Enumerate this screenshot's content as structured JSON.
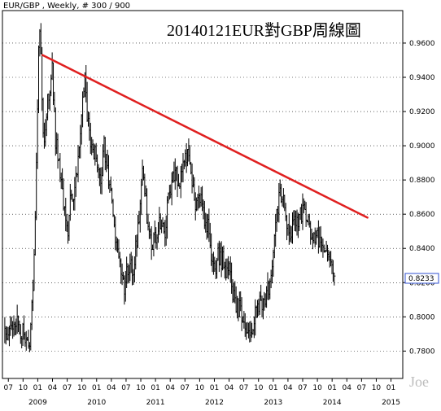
{
  "chart_data": {
    "type": "line",
    "header": "EUR/GBP , Weekly, # 300 / 900",
    "title": "20140121EUR對GBP周線圖",
    "watermark": "Joe",
    "last_price": "0.8233",
    "ylim": [
      0.764,
      0.979
    ],
    "y_ticks": [
      {
        "value": 0.96,
        "label": "0.9600"
      },
      {
        "value": 0.94,
        "label": "0.9400"
      },
      {
        "value": 0.92,
        "label": "0.9200"
      },
      {
        "value": 0.9,
        "label": "0.9000"
      },
      {
        "value": 0.88,
        "label": "0.8800"
      },
      {
        "value": 0.86,
        "label": "0.8600"
      },
      {
        "value": 0.84,
        "label": "0.8400"
      },
      {
        "value": 0.82,
        "label": "0.8200"
      },
      {
        "value": 0.8,
        "label": "0.8000"
      },
      {
        "value": 0.78,
        "label": "0.7800"
      }
    ],
    "xlim": [
      2008.4,
      2015.2
    ],
    "x_month_ticks": [
      {
        "value": 2008.5,
        "label": "07"
      },
      {
        "value": 2008.75,
        "label": "10"
      },
      {
        "value": 2009.0,
        "label": "01"
      },
      {
        "value": 2009.25,
        "label": "04"
      },
      {
        "value": 2009.5,
        "label": "07"
      },
      {
        "value": 2009.75,
        "label": "10"
      },
      {
        "value": 2010.0,
        "label": "01"
      },
      {
        "value": 2010.25,
        "label": "04"
      },
      {
        "value": 2010.5,
        "label": "07"
      },
      {
        "value": 2010.75,
        "label": "10"
      },
      {
        "value": 2011.0,
        "label": "01"
      },
      {
        "value": 2011.25,
        "label": "04"
      },
      {
        "value": 2011.5,
        "label": "07"
      },
      {
        "value": 2011.75,
        "label": "10"
      },
      {
        "value": 2012.0,
        "label": "01"
      },
      {
        "value": 2012.25,
        "label": "04"
      },
      {
        "value": 2012.5,
        "label": "07"
      },
      {
        "value": 2012.75,
        "label": "10"
      },
      {
        "value": 2013.0,
        "label": "01"
      },
      {
        "value": 2013.25,
        "label": "04"
      },
      {
        "value": 2013.5,
        "label": "07"
      },
      {
        "value": 2013.75,
        "label": "10"
      },
      {
        "value": 2014.0,
        "label": "01"
      },
      {
        "value": 2014.25,
        "label": "04"
      },
      {
        "value": 2014.5,
        "label": "07"
      },
      {
        "value": 2014.75,
        "label": "10"
      },
      {
        "value": 2015.0,
        "label": "01"
      }
    ],
    "x_year_ticks": [
      {
        "value": 2009.0,
        "label": "2009"
      },
      {
        "value": 2010.0,
        "label": "2010"
      },
      {
        "value": 2011.0,
        "label": "2011"
      },
      {
        "value": 2012.0,
        "label": "2012"
      },
      {
        "value": 2013.0,
        "label": "2013"
      },
      {
        "value": 2014.0,
        "label": "2014"
      },
      {
        "value": 2015.0,
        "label": "2015"
      }
    ],
    "price_path": [
      [
        2008.44,
        0.79
      ],
      [
        2008.55,
        0.794
      ],
      [
        2008.66,
        0.797
      ],
      [
        2008.78,
        0.788
      ],
      [
        2008.86,
        0.779
      ],
      [
        2008.93,
        0.825
      ],
      [
        2008.97,
        0.87
      ],
      [
        2009.0,
        0.935
      ],
      [
        2009.03,
        0.975
      ],
      [
        2009.06,
        0.94
      ],
      [
        2009.09,
        0.912
      ],
      [
        2009.12,
        0.905
      ],
      [
        2009.16,
        0.925
      ],
      [
        2009.2,
        0.928
      ],
      [
        2009.24,
        0.948
      ],
      [
        2009.3,
        0.904
      ],
      [
        2009.36,
        0.892
      ],
      [
        2009.42,
        0.875
      ],
      [
        2009.46,
        0.858
      ],
      [
        2009.5,
        0.848
      ],
      [
        2009.54,
        0.862
      ],
      [
        2009.58,
        0.876
      ],
      [
        2009.62,
        0.868
      ],
      [
        2009.68,
        0.895
      ],
      [
        2009.75,
        0.922
      ],
      [
        2009.8,
        0.939
      ],
      [
        2009.84,
        0.918
      ],
      [
        2009.88,
        0.906
      ],
      [
        2009.93,
        0.899
      ],
      [
        2009.98,
        0.893
      ],
      [
        2010.04,
        0.889
      ],
      [
        2010.08,
        0.88
      ],
      [
        2010.12,
        0.9
      ],
      [
        2010.17,
        0.891
      ],
      [
        2010.22,
        0.877
      ],
      [
        2010.27,
        0.862
      ],
      [
        2010.33,
        0.843
      ],
      [
        2010.38,
        0.837
      ],
      [
        2010.42,
        0.822
      ],
      [
        2010.47,
        0.818
      ],
      [
        2010.52,
        0.828
      ],
      [
        2010.57,
        0.829
      ],
      [
        2010.62,
        0.824
      ],
      [
        2010.68,
        0.846
      ],
      [
        2010.73,
        0.864
      ],
      [
        2010.78,
        0.885
      ],
      [
        2010.81,
        0.877
      ],
      [
        2010.86,
        0.856
      ],
      [
        2010.92,
        0.844
      ],
      [
        2011.0,
        0.846
      ],
      [
        2011.05,
        0.852
      ],
      [
        2011.1,
        0.853
      ],
      [
        2011.15,
        0.844
      ],
      [
        2011.22,
        0.871
      ],
      [
        2011.3,
        0.879
      ],
      [
        2011.35,
        0.885
      ],
      [
        2011.4,
        0.88
      ],
      [
        2011.45,
        0.886
      ],
      [
        2011.5,
        0.898
      ],
      [
        2011.55,
        0.893
      ],
      [
        2011.6,
        0.887
      ],
      [
        2011.66,
        0.867
      ],
      [
        2011.71,
        0.867
      ],
      [
        2011.76,
        0.872
      ],
      [
        2011.81,
        0.862
      ],
      [
        2011.85,
        0.856
      ],
      [
        2011.9,
        0.852
      ],
      [
        2011.95,
        0.838
      ],
      [
        2012.02,
        0.831
      ],
      [
        2012.08,
        0.836
      ],
      [
        2012.14,
        0.832
      ],
      [
        2012.2,
        0.827
      ],
      [
        2012.26,
        0.826
      ],
      [
        2012.3,
        0.814
      ],
      [
        2012.34,
        0.808
      ],
      [
        2012.4,
        0.805
      ],
      [
        2012.46,
        0.802
      ],
      [
        2012.52,
        0.79
      ],
      [
        2012.56,
        0.786
      ],
      [
        2012.6,
        0.795
      ],
      [
        2012.65,
        0.796
      ],
      [
        2012.68,
        0.8
      ],
      [
        2012.73,
        0.804
      ],
      [
        2012.8,
        0.808
      ],
      [
        2012.86,
        0.807
      ],
      [
        2012.92,
        0.816
      ],
      [
        2012.97,
        0.821
      ],
      [
        2013.02,
        0.843
      ],
      [
        2013.06,
        0.858
      ],
      [
        2013.1,
        0.868
      ],
      [
        2013.14,
        0.873
      ],
      [
        2013.18,
        0.866
      ],
      [
        2013.22,
        0.851
      ],
      [
        2013.27,
        0.847
      ],
      [
        2013.31,
        0.852
      ],
      [
        2013.36,
        0.855
      ],
      [
        2013.4,
        0.856
      ],
      [
        2013.44,
        0.858
      ],
      [
        2013.49,
        0.862
      ],
      [
        2013.53,
        0.863
      ],
      [
        2013.58,
        0.857
      ],
      [
        2013.63,
        0.85
      ],
      [
        2013.68,
        0.848
      ],
      [
        2013.74,
        0.844
      ],
      [
        2013.79,
        0.848
      ],
      [
        2013.84,
        0.843
      ],
      [
        2013.88,
        0.835
      ],
      [
        2013.93,
        0.834
      ],
      [
        2013.97,
        0.831
      ],
      [
        2014.02,
        0.829
      ],
      [
        2014.05,
        0.823
      ]
    ],
    "trendline": {
      "color": "#e02020",
      "start": [
        2009.08,
        0.953
      ],
      "end": [
        2014.6,
        0.858
      ]
    }
  }
}
